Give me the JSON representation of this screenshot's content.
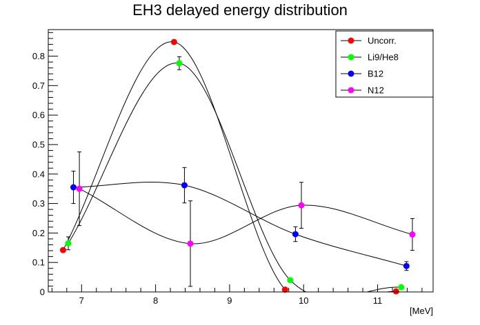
{
  "chart_data": {
    "type": "scatter",
    "title": "EH3 delayed energy distribution",
    "xlabel": "[MeV]",
    "ylabel": "",
    "xlim": [
      6.55,
      11.75
    ],
    "ylim": [
      0,
      0.89
    ],
    "x_ticks": [
      "7",
      "8",
      "9",
      "10",
      "11"
    ],
    "y_ticks": [
      "0",
      "0.1",
      "0.2",
      "0.3",
      "0.4",
      "0.5",
      "0.6",
      "0.7",
      "0.8"
    ],
    "grid": false,
    "legend_position": "top-right",
    "series": [
      {
        "name": "Uncorr.",
        "color": "#ff0000",
        "points": [
          {
            "x": 6.75,
            "y": 0.142,
            "err": 0.0
          },
          {
            "x": 8.25,
            "y": 0.848,
            "err": 0.0
          },
          {
            "x": 9.75,
            "y": 0.008,
            "err": 0.0
          },
          {
            "x": 11.25,
            "y": 0.002,
            "err": 0.0
          }
        ]
      },
      {
        "name": "Li9/He8",
        "color": "#00ff00",
        "points": [
          {
            "x": 6.82,
            "y": 0.165,
            "err": 0.022
          },
          {
            "x": 8.32,
            "y": 0.776,
            "err": 0.022
          },
          {
            "x": 9.82,
            "y": 0.04,
            "err": 0.0
          },
          {
            "x": 11.32,
            "y": 0.016,
            "err": 0.0
          }
        ]
      },
      {
        "name": "B12",
        "color": "#0000ff",
        "points": [
          {
            "x": 6.89,
            "y": 0.355,
            "err": 0.055
          },
          {
            "x": 8.39,
            "y": 0.362,
            "err": 0.06
          },
          {
            "x": 9.89,
            "y": 0.196,
            "err": 0.025
          },
          {
            "x": 11.39,
            "y": 0.088,
            "err": 0.015
          }
        ]
      },
      {
        "name": "N12",
        "color": "#ff00ff",
        "points": [
          {
            "x": 6.97,
            "y": 0.35,
            "err": 0.125
          },
          {
            "x": 8.47,
            "y": 0.164,
            "err": 0.145
          },
          {
            "x": 9.97,
            "y": 0.294,
            "err": 0.078
          },
          {
            "x": 11.47,
            "y": 0.195,
            "err": 0.054
          }
        ]
      }
    ]
  }
}
